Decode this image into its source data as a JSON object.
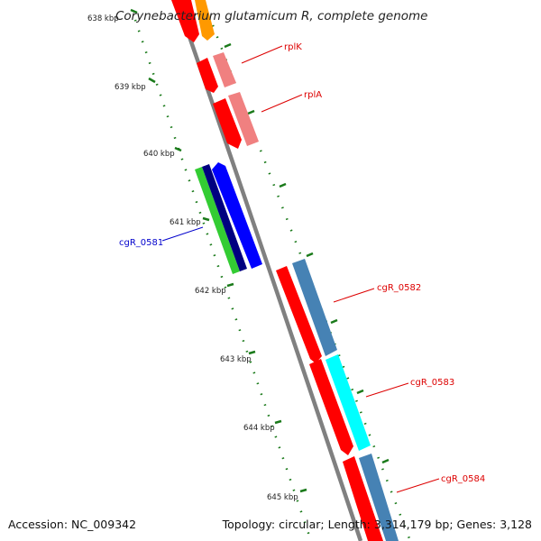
{
  "title": "Corynebacterium glutamicum R, complete genome",
  "accession_text": "Accession: NC_009342",
  "topology_text": "Topology: circular; Length: 3,314,179 bp; Genes: 3,128",
  "tick_labels": [
    "638 kbp",
    "639 kbp",
    "640 kbp",
    "641 kbp",
    "642 kbp",
    "643 kbp",
    "644 kbp",
    "645 kbp"
  ],
  "gene_labels": {
    "rplK": "rplK",
    "rplA": "rplA",
    "cgR_0581": "cgR_0581",
    "cgR_0582": "cgR_0582",
    "cgR_0583": "cgR_0583",
    "cgR_0584": "cgR_0584"
  },
  "colors": {
    "backbone": "#808080",
    "tick": "#1a7a1a",
    "cds": "#ff0000",
    "cds_light": "#f08080",
    "orange": "#ff9900",
    "blue": "#0000ff",
    "navy": "#000080",
    "green": "#33cc33",
    "steel": "#4682b4",
    "cyan": "#00ffff",
    "label_red": "#dd0000",
    "label_blue": "#0000cc"
  }
}
